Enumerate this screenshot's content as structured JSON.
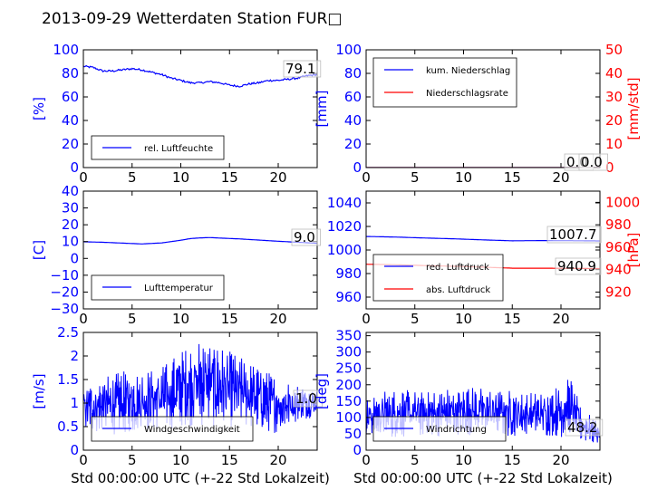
{
  "figure": {
    "title": "2013-09-29 Wetterdaten Station FUR□",
    "xlabel": "Std 00:00:00 UTC (+-22 Std Lokalzeit)"
  },
  "colors": {
    "primary": "#0000ff",
    "secondary": "#ff0000",
    "axis": "#000000"
  },
  "chart_data": [
    {
      "id": "humidity",
      "type": "line",
      "xlim": [
        0,
        24
      ],
      "xticks": [
        0,
        5,
        10,
        15,
        20
      ],
      "ylim": [
        0,
        100
      ],
      "yticks": [
        0,
        20,
        40,
        60,
        80,
        100
      ],
      "ylabel": "[%]",
      "series": [
        {
          "name": "rel. Luftfeuchte",
          "axis": "left",
          "color": "#0000ff",
          "x": [
            0,
            1,
            2,
            3,
            4,
            5,
            6,
            7,
            8,
            9,
            10,
            11,
            12,
            13,
            14,
            15,
            16,
            17,
            18,
            19,
            20,
            21,
            22,
            23,
            24
          ],
          "y": [
            86,
            85,
            82,
            82,
            83,
            84,
            83,
            81,
            79,
            76,
            74,
            72,
            72,
            73,
            72,
            70,
            69,
            71,
            72,
            74,
            74,
            75,
            76,
            78,
            79
          ]
        }
      ],
      "annotation": {
        "text": "79.1"
      }
    },
    {
      "id": "precip",
      "type": "line",
      "xlim": [
        0,
        24
      ],
      "xticks": [
        0,
        5,
        10,
        15,
        20
      ],
      "ylim": [
        0,
        100
      ],
      "yticks": [
        0,
        20,
        40,
        60,
        80,
        100
      ],
      "ylabel": "[mm]",
      "ylim2": [
        0,
        50
      ],
      "yticks2": [
        0,
        10,
        20,
        30,
        40,
        50
      ],
      "ylabel2": "[mm/std]",
      "series": [
        {
          "name": "kum. Niederschlag",
          "axis": "left",
          "color": "#0000ff",
          "x": [
            0,
            24
          ],
          "y": [
            0,
            0
          ]
        },
        {
          "name": "Niederschlagsrate",
          "axis": "right",
          "color": "#ff0000",
          "x": [
            0,
            24
          ],
          "y": [
            0,
            0
          ]
        }
      ],
      "annotations": [
        {
          "text": "0.0"
        },
        {
          "text": "0.0"
        }
      ]
    },
    {
      "id": "temperature",
      "type": "line",
      "xlim": [
        0,
        24
      ],
      "xticks": [
        0,
        5,
        10,
        15,
        20
      ],
      "ylim": [
        -30,
        40
      ],
      "yticks": [
        -30,
        -20,
        -10,
        0,
        10,
        20,
        30,
        40
      ],
      "ylabel": "[C]",
      "series": [
        {
          "name": "Lufttemperatur",
          "axis": "left",
          "color": "#0000ff",
          "x": [
            0,
            2,
            4,
            6,
            8,
            10,
            11,
            12,
            13,
            14,
            16,
            18,
            20,
            22,
            24
          ],
          "y": [
            9.9,
            9.6,
            9.1,
            8.6,
            9.2,
            10.8,
            11.8,
            12.2,
            12.4,
            12.1,
            11.6,
            10.9,
            10.2,
            9.6,
            9.0
          ]
        }
      ],
      "annotation": {
        "text": "9.0"
      }
    },
    {
      "id": "pressure",
      "type": "line",
      "xlim": [
        0,
        24
      ],
      "xticks": [
        0,
        5,
        10,
        15,
        20
      ],
      "ylim": [
        950,
        1050
      ],
      "yticks": [
        960,
        980,
        1000,
        1020,
        1040
      ],
      "ylabel": "",
      "ylim2": [
        905,
        1010
      ],
      "yticks2": [
        920,
        940,
        960,
        980,
        1000
      ],
      "ylabel2": "[hPa]",
      "series": [
        {
          "name": "red. Luftdruck",
          "axis": "left",
          "color": "#0000ff",
          "x": [
            0,
            3,
            6,
            9,
            12,
            15,
            18,
            21,
            24
          ],
          "y": [
            1011.5,
            1011.0,
            1010.2,
            1009.5,
            1008.6,
            1007.8,
            1008.0,
            1007.9,
            1007.7
          ]
        },
        {
          "name": "abs. Luftdruck",
          "axis": "right",
          "color": "#ff0000",
          "x": [
            0,
            3,
            6,
            9,
            12,
            15,
            18,
            21,
            24
          ],
          "y": [
            944.8,
            944.4,
            943.6,
            943.0,
            942.2,
            941.3,
            941.3,
            941.1,
            940.9
          ]
        }
      ],
      "annotations": [
        {
          "text": "1007.7"
        },
        {
          "text": "940.9"
        }
      ]
    },
    {
      "id": "windspeed",
      "type": "line",
      "xlim": [
        0,
        24
      ],
      "xticks": [
        0,
        5,
        10,
        15,
        20
      ],
      "ylim": [
        0,
        2.5
      ],
      "yticks": [
        0.0,
        0.5,
        1.0,
        1.5,
        2.0,
        2.5
      ],
      "ylabel": "[m/s]",
      "series": [
        {
          "name": "Windgeschwindigkeit",
          "axis": "left",
          "color": "#0000ff",
          "x": [
            0,
            2,
            4,
            6,
            8,
            10,
            12,
            14,
            16,
            18,
            20,
            22,
            24
          ],
          "y": [
            0.9,
            0.95,
            1.0,
            1.05,
            1.1,
            1.3,
            1.45,
            1.35,
            1.25,
            1.1,
            0.95,
            1.0,
            1.0
          ],
          "spread": [
            0.35,
            0.45,
            0.5,
            0.5,
            0.5,
            0.6,
            0.7,
            0.65,
            0.55,
            0.5,
            0.45,
            0.3,
            0.2
          ]
        }
      ],
      "annotation": {
        "text": "1.0"
      }
    },
    {
      "id": "winddir",
      "type": "line",
      "xlim": [
        0,
        24
      ],
      "xticks": [
        0,
        5,
        10,
        15,
        20
      ],
      "ylim": [
        0,
        360
      ],
      "yticks": [
        0,
        50,
        100,
        150,
        200,
        250,
        300,
        350
      ],
      "ylabel": "[deg]",
      "series": [
        {
          "name": "Windrichtung",
          "axis": "left",
          "color": "#0000ff",
          "x": [
            0,
            2,
            4,
            6,
            8,
            10,
            12,
            14,
            16,
            18,
            20,
            21,
            22,
            24
          ],
          "y": [
            100,
            110,
            115,
            110,
            115,
            120,
            120,
            115,
            110,
            110,
            120,
            130,
            80,
            50
          ],
          "spread": [
            45,
            55,
            55,
            50,
            55,
            55,
            55,
            55,
            50,
            50,
            60,
            70,
            40,
            25
          ]
        }
      ],
      "annotation": {
        "text": "48.2"
      }
    }
  ]
}
